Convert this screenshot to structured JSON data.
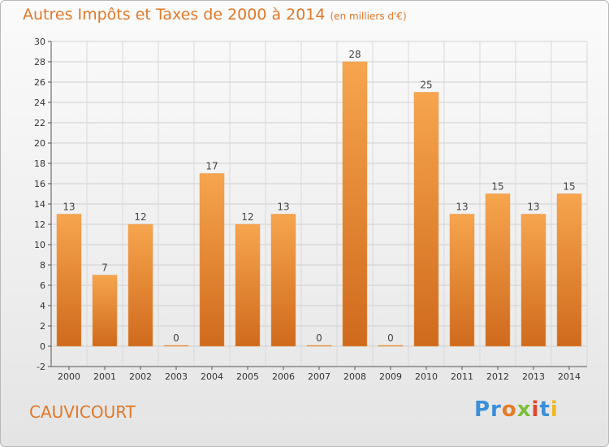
{
  "title": "Autres Impôts et Taxes de 2000 à 2014",
  "unit": "(en milliers d'€)",
  "town": "CAUVICOURT",
  "logo": [
    "Pr",
    "o",
    "x",
    "i",
    "t",
    "i"
  ],
  "colors": {
    "bar_light": "#f7a54e",
    "bar_dark": "#d06a1a",
    "title": "#e0782a"
  },
  "chart_data": {
    "type": "bar",
    "categories": [
      "2000",
      "2001",
      "2002",
      "2003",
      "2004",
      "2005",
      "2006",
      "2007",
      "2008",
      "2009",
      "2010",
      "2011",
      "2012",
      "2013",
      "2014"
    ],
    "values": [
      13,
      7,
      12,
      0,
      17,
      12,
      13,
      0,
      28,
      0,
      25,
      13,
      15,
      13,
      15
    ],
    "ylim": [
      -2,
      30
    ],
    "yticks": [
      -2,
      0,
      2,
      4,
      6,
      8,
      10,
      12,
      14,
      16,
      18,
      20,
      22,
      24,
      26,
      28,
      30
    ],
    "grid": true
  }
}
